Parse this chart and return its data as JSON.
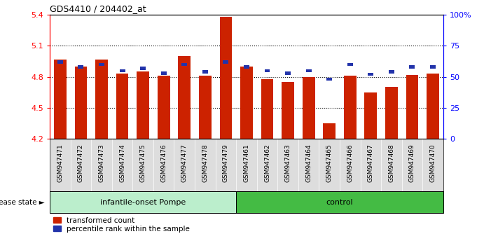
{
  "title": "GDS4410 / 204402_at",
  "samples": [
    "GSM947471",
    "GSM947472",
    "GSM947473",
    "GSM947474",
    "GSM947475",
    "GSM947476",
    "GSM947477",
    "GSM947478",
    "GSM947479",
    "GSM947461",
    "GSM947462",
    "GSM947463",
    "GSM947464",
    "GSM947465",
    "GSM947466",
    "GSM947467",
    "GSM947468",
    "GSM947469",
    "GSM947470"
  ],
  "transformed_count": [
    4.97,
    4.9,
    4.97,
    4.83,
    4.85,
    4.81,
    5.0,
    4.81,
    5.38,
    4.9,
    4.78,
    4.75,
    4.8,
    4.35,
    4.81,
    4.65,
    4.7,
    4.82,
    4.83
  ],
  "percentile_rank": [
    62,
    58,
    60,
    55,
    57,
    53,
    60,
    54,
    62,
    58,
    55,
    53,
    55,
    48,
    60,
    52,
    54,
    58,
    58
  ],
  "group_split": 9,
  "group_names": [
    "infantile-onset Pompe",
    "control"
  ],
  "ylim_left": [
    4.2,
    5.4
  ],
  "ylim_right": [
    0,
    100
  ],
  "yticks_left": [
    4.2,
    4.5,
    4.8,
    5.1,
    5.4
  ],
  "yticks_right": [
    0,
    25,
    50,
    75,
    100
  ],
  "ytick_labels_right": [
    "0",
    "25",
    "50",
    "75",
    "100%"
  ],
  "bar_color": "#CC2200",
  "percentile_color": "#2233AA",
  "group_color_pompe": "#BBEECC",
  "group_color_control": "#44BB44",
  "xtick_bg": "#DDDDDD",
  "legend_items": [
    "transformed count",
    "percentile rank within the sample"
  ]
}
